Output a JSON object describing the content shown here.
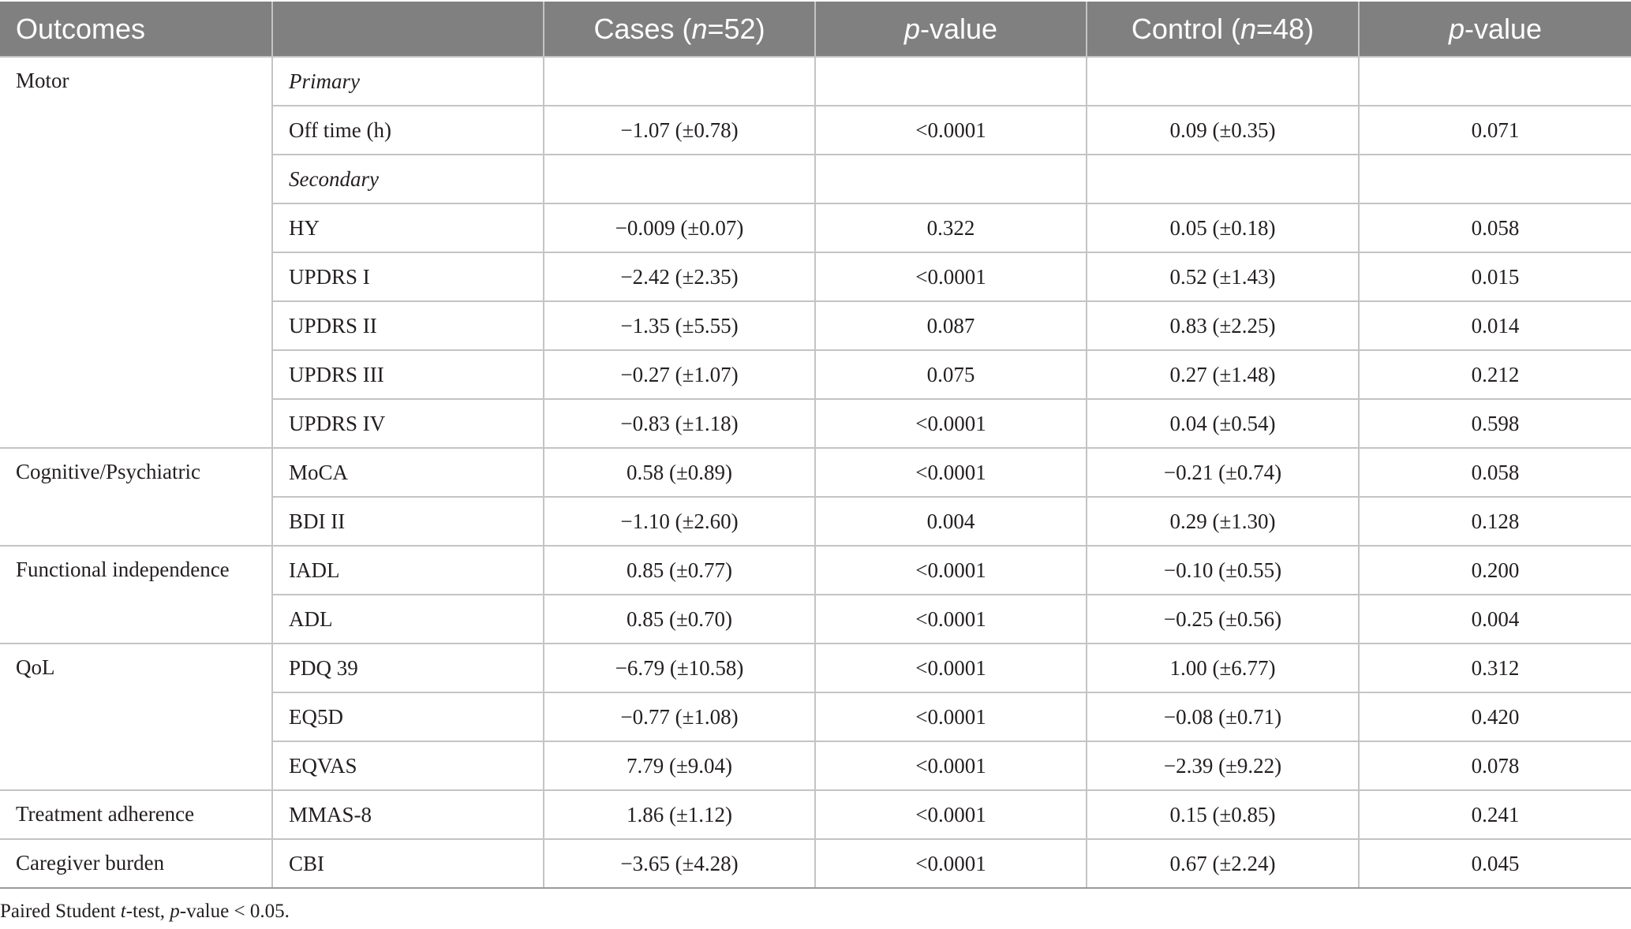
{
  "headers": {
    "outcomes": "Outcomes",
    "cases": "Cases (n=52)",
    "p1": "p-value",
    "control": "Control (n=48)",
    "p2": "p-value"
  },
  "categories": {
    "motor": "Motor",
    "cognitive": "Cognitive/Psychiatric",
    "functional": "Functional independence",
    "qol": "QoL",
    "adherence": "Treatment adherence",
    "caregiver": "Caregiver burden"
  },
  "rows": [
    {
      "measure": "Primary",
      "cases": "",
      "p1": "",
      "control": "",
      "p2": ""
    },
    {
      "measure": "Off time (h)",
      "cases": "−1.07 (±0.78)",
      "p1": "<0.0001",
      "control": "0.09 (±0.35)",
      "p2": "0.071"
    },
    {
      "measure": "Secondary",
      "cases": "",
      "p1": "",
      "control": "",
      "p2": ""
    },
    {
      "measure": "HY",
      "cases": "−0.009 (±0.07)",
      "p1": "0.322",
      "control": "0.05 (±0.18)",
      "p2": "0.058"
    },
    {
      "measure": "UPDRS I",
      "cases": "−2.42 (±2.35)",
      "p1": "<0.0001",
      "control": "0.52 (±1.43)",
      "p2": "0.015"
    },
    {
      "measure": "UPDRS II",
      "cases": "−1.35 (±5.55)",
      "p1": "0.087",
      "control": "0.83 (±2.25)",
      "p2": "0.014"
    },
    {
      "measure": "UPDRS III",
      "cases": "−0.27 (±1.07)",
      "p1": "0.075",
      "control": "0.27 (±1.48)",
      "p2": "0.212"
    },
    {
      "measure": "UPDRS IV",
      "cases": "−0.83 (±1.18)",
      "p1": "<0.0001",
      "control": "0.04 (±0.54)",
      "p2": "0.598"
    },
    {
      "measure": "MoCA",
      "cases": "0.58 (±0.89)",
      "p1": "<0.0001",
      "control": "−0.21 (±0.74)",
      "p2": "0.058"
    },
    {
      "measure": "BDI II",
      "cases": "−1.10 (±2.60)",
      "p1": "0.004",
      "control": "0.29 (±1.30)",
      "p2": "0.128"
    },
    {
      "measure": "IADL",
      "cases": "0.85 (±0.77)",
      "p1": "<0.0001",
      "control": "−0.10 (±0.55)",
      "p2": "0.200"
    },
    {
      "measure": "ADL",
      "cases": "0.85 (±0.70)",
      "p1": "<0.0001",
      "control": "−0.25 (±0.56)",
      "p2": "0.004"
    },
    {
      "measure": "PDQ 39",
      "cases": "−6.79 (±10.58)",
      "p1": "<0.0001",
      "control": "1.00 (±6.77)",
      "p2": "0.312"
    },
    {
      "measure": "EQ5D",
      "cases": "−0.77 (±1.08)",
      "p1": "<0.0001",
      "control": "−0.08 (±0.71)",
      "p2": "0.420"
    },
    {
      "measure": "EQVAS",
      "cases": "7.79 (±9.04)",
      "p1": "<0.0001",
      "control": "−2.39 (±9.22)",
      "p2": "0.078"
    },
    {
      "measure": "MMAS-8",
      "cases": "1.86 (±1.12)",
      "p1": "<0.0001",
      "control": "0.15 (±0.85)",
      "p2": "0.241"
    },
    {
      "measure": "CBI",
      "cases": "−3.65 (±4.28)",
      "p1": "<0.0001",
      "control": "0.67 (±2.24)",
      "p2": "0.045"
    }
  ],
  "footnote": "Paired Student t-test, p-value < 0.05."
}
